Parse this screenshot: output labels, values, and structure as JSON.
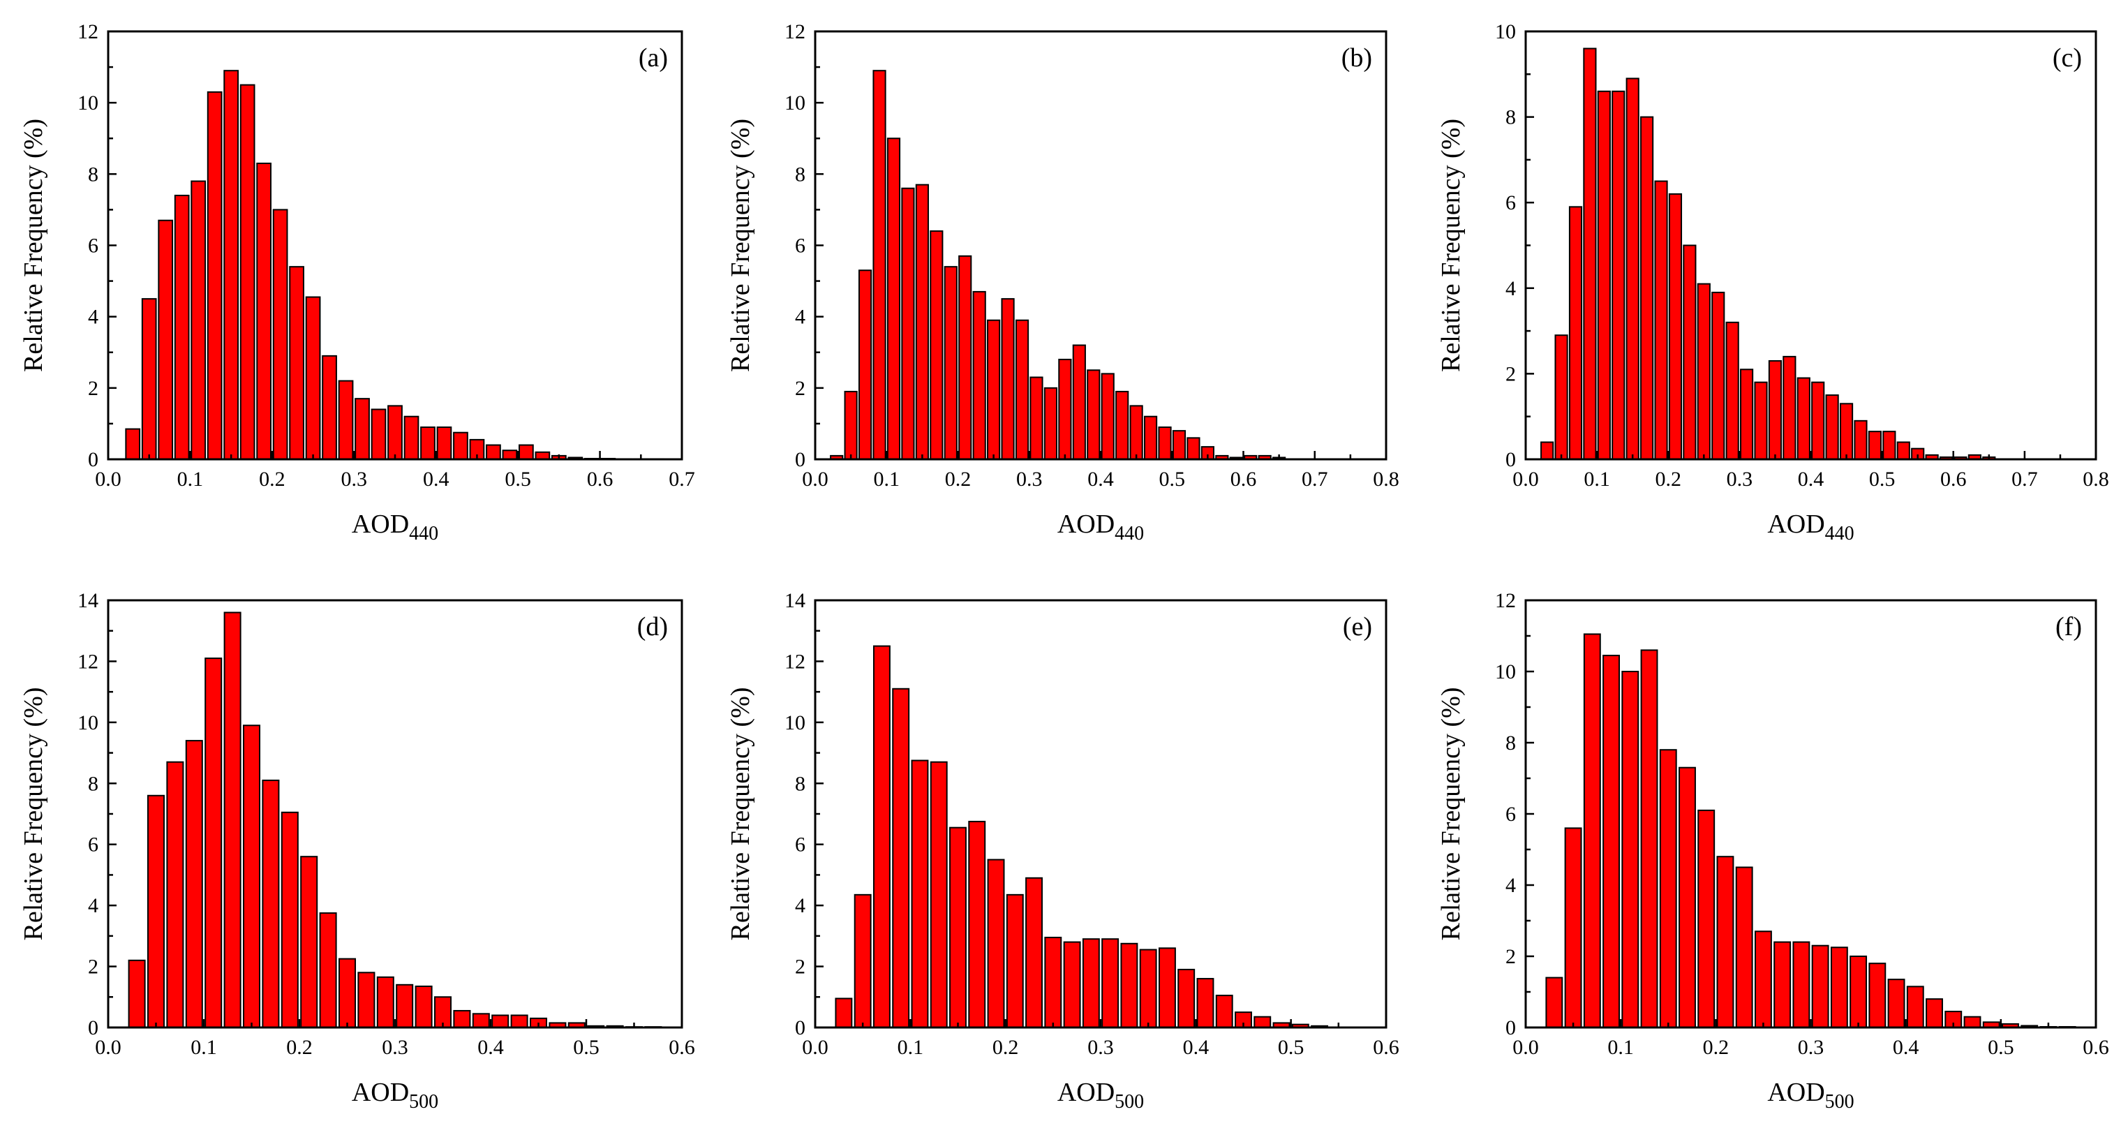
{
  "chart_data": [
    {
      "type": "bar",
      "panel_label": "(a)",
      "xlabel": "AOD",
      "xlabel_sub": "440",
      "ylabel": "Relative Frequency (%)",
      "xlim": [
        0,
        0.7
      ],
      "ylim": [
        0,
        12
      ],
      "xticks": [
        "0.0",
        "0.1",
        "0.2",
        "0.3",
        "0.4",
        "0.5",
        "0.6",
        "0.7"
      ],
      "yticks": [
        "0",
        "2",
        "4",
        "6",
        "8",
        "10",
        "12"
      ],
      "bin_width": 0.02,
      "x": [
        0.03,
        0.05,
        0.07,
        0.09,
        0.11,
        0.13,
        0.15,
        0.17,
        0.19,
        0.21,
        0.23,
        0.25,
        0.27,
        0.29,
        0.31,
        0.33,
        0.35,
        0.37,
        0.39,
        0.41,
        0.43,
        0.45,
        0.47,
        0.49,
        0.51,
        0.53,
        0.55,
        0.57,
        0.59,
        0.61,
        0.63,
        0.65,
        0.67
      ],
      "values": [
        0.85,
        4.5,
        6.7,
        7.4,
        7.8,
        10.3,
        10.9,
        10.5,
        8.3,
        7.0,
        5.4,
        4.55,
        2.9,
        2.2,
        1.7,
        1.4,
        1.5,
        1.2,
        0.9,
        0.9,
        0.75,
        0.55,
        0.4,
        0.25,
        0.4,
        0.2,
        0.1,
        0.05,
        0.02,
        0.02,
        0.01,
        0.01,
        0.01
      ]
    },
    {
      "type": "bar",
      "panel_label": "(b)",
      "xlabel": "AOD",
      "xlabel_sub": "440",
      "ylabel": "Relative Frequency (%)",
      "xlim": [
        0,
        0.8
      ],
      "ylim": [
        0,
        12
      ],
      "xticks": [
        "0.0",
        "0.1",
        "0.2",
        "0.3",
        "0.4",
        "0.5",
        "0.6",
        "0.7",
        "0.8"
      ],
      "yticks": [
        "0",
        "2",
        "4",
        "6",
        "8",
        "10",
        "12"
      ],
      "bin_width": 0.02,
      "x": [
        0.03,
        0.05,
        0.07,
        0.09,
        0.11,
        0.13,
        0.15,
        0.17,
        0.19,
        0.21,
        0.23,
        0.25,
        0.27,
        0.29,
        0.31,
        0.33,
        0.35,
        0.37,
        0.39,
        0.41,
        0.43,
        0.45,
        0.47,
        0.49,
        0.51,
        0.53,
        0.55,
        0.57,
        0.59,
        0.61,
        0.63,
        0.65
      ],
      "values": [
        0.1,
        1.9,
        5.3,
        10.9,
        9.0,
        7.6,
        7.7,
        6.4,
        5.4,
        5.7,
        4.7,
        3.9,
        4.5,
        3.9,
        2.3,
        2.0,
        2.8,
        3.2,
        2.5,
        2.4,
        1.9,
        1.5,
        1.2,
        0.9,
        0.8,
        0.6,
        0.35,
        0.1,
        0.05,
        0.1,
        0.1,
        0.05
      ]
    },
    {
      "type": "bar",
      "panel_label": "(c)",
      "xlabel": "AOD",
      "xlabel_sub": "440",
      "ylabel": "Relative Frequency (%)",
      "xlim": [
        0,
        0.8
      ],
      "ylim": [
        0,
        10
      ],
      "xticks": [
        "0.0",
        "0.1",
        "0.2",
        "0.3",
        "0.4",
        "0.5",
        "0.6",
        "0.7",
        "0.8"
      ],
      "yticks": [
        "0",
        "2",
        "4",
        "6",
        "8",
        "10"
      ],
      "bin_width": 0.02,
      "x": [
        0.03,
        0.05,
        0.07,
        0.09,
        0.11,
        0.13,
        0.15,
        0.17,
        0.19,
        0.21,
        0.23,
        0.25,
        0.27,
        0.29,
        0.31,
        0.33,
        0.35,
        0.37,
        0.39,
        0.41,
        0.43,
        0.45,
        0.47,
        0.49,
        0.51,
        0.53,
        0.55,
        0.57,
        0.59,
        0.61,
        0.63,
        0.65
      ],
      "values": [
        0.4,
        2.9,
        5.9,
        9.6,
        8.6,
        8.6,
        8.9,
        8.0,
        6.5,
        6.2,
        5.0,
        4.1,
        3.9,
        3.2,
        2.1,
        1.8,
        2.3,
        2.4,
        1.9,
        1.8,
        1.5,
        1.3,
        0.9,
        0.65,
        0.65,
        0.4,
        0.25,
        0.1,
        0.05,
        0.05,
        0.1,
        0.05
      ]
    },
    {
      "type": "bar",
      "panel_label": "(d)",
      "xlabel": "AOD",
      "xlabel_sub": "500",
      "ylabel": "Relative Frequency (%)",
      "xlim": [
        0,
        0.6
      ],
      "ylim": [
        0,
        14
      ],
      "xticks": [
        "0.0",
        "0.1",
        "0.2",
        "0.3",
        "0.4",
        "0.5",
        "0.6"
      ],
      "yticks": [
        "0",
        "2",
        "4",
        "6",
        "8",
        "10",
        "12",
        "14"
      ],
      "bin_width": 0.02,
      "x": [
        0.03,
        0.05,
        0.07,
        0.09,
        0.11,
        0.13,
        0.15,
        0.17,
        0.19,
        0.21,
        0.23,
        0.25,
        0.27,
        0.29,
        0.31,
        0.33,
        0.35,
        0.37,
        0.39,
        0.41,
        0.43,
        0.45,
        0.47,
        0.49,
        0.51,
        0.53,
        0.55,
        0.57
      ],
      "values": [
        2.2,
        7.6,
        8.7,
        9.4,
        12.1,
        13.6,
        9.9,
        8.1,
        7.05,
        5.6,
        3.75,
        2.25,
        1.8,
        1.65,
        1.4,
        1.35,
        1.0,
        0.55,
        0.45,
        0.4,
        0.4,
        0.3,
        0.15,
        0.15,
        0.05,
        0.05,
        0.02,
        0.02
      ]
    },
    {
      "type": "bar",
      "panel_label": "(e)",
      "xlabel": "AOD",
      "xlabel_sub": "500",
      "ylabel": "Relative Frequency (%)",
      "xlim": [
        0,
        0.6
      ],
      "ylim": [
        0,
        14
      ],
      "xticks": [
        "0.0",
        "0.1",
        "0.2",
        "0.3",
        "0.4",
        "0.5",
        "0.6"
      ],
      "yticks": [
        "0",
        "2",
        "4",
        "6",
        "8",
        "10",
        "12",
        "14"
      ],
      "bin_width": 0.02,
      "x": [
        0.03,
        0.05,
        0.07,
        0.09,
        0.11,
        0.13,
        0.15,
        0.17,
        0.19,
        0.21,
        0.23,
        0.25,
        0.27,
        0.29,
        0.31,
        0.33,
        0.35,
        0.37,
        0.39,
        0.41,
        0.43,
        0.45,
        0.47,
        0.49,
        0.51,
        0.53
      ],
      "values": [
        0.95,
        4.35,
        12.5,
        11.1,
        8.75,
        8.7,
        6.55,
        6.75,
        5.5,
        4.35,
        4.9,
        2.95,
        2.8,
        2.9,
        2.9,
        2.75,
        2.55,
        2.6,
        1.9,
        1.6,
        1.05,
        0.5,
        0.35,
        0.15,
        0.1,
        0.05
      ]
    },
    {
      "type": "bar",
      "panel_label": "(f)",
      "xlabel": "AOD",
      "xlabel_sub": "500",
      "ylabel": "Relative Frequency (%)",
      "xlim": [
        0,
        0.6
      ],
      "ylim": [
        0,
        12
      ],
      "xticks": [
        "0.0",
        "0.1",
        "0.2",
        "0.3",
        "0.4",
        "0.5",
        "0.6"
      ],
      "yticks": [
        "0",
        "2",
        "4",
        "6",
        "8",
        "10",
        "12"
      ],
      "bin_width": 0.02,
      "x": [
        0.03,
        0.05,
        0.07,
        0.09,
        0.11,
        0.13,
        0.15,
        0.17,
        0.19,
        0.21,
        0.23,
        0.25,
        0.27,
        0.29,
        0.31,
        0.33,
        0.35,
        0.37,
        0.39,
        0.41,
        0.43,
        0.45,
        0.47,
        0.49,
        0.51,
        0.53,
        0.55,
        0.57
      ],
      "values": [
        1.4,
        5.6,
        11.05,
        10.45,
        10.0,
        10.6,
        7.8,
        7.3,
        6.1,
        4.8,
        4.5,
        2.7,
        2.4,
        2.4,
        2.3,
        2.25,
        2.0,
        1.8,
        1.35,
        1.15,
        0.8,
        0.45,
        0.3,
        0.15,
        0.1,
        0.05,
        0.02,
        0.02
      ]
    }
  ]
}
